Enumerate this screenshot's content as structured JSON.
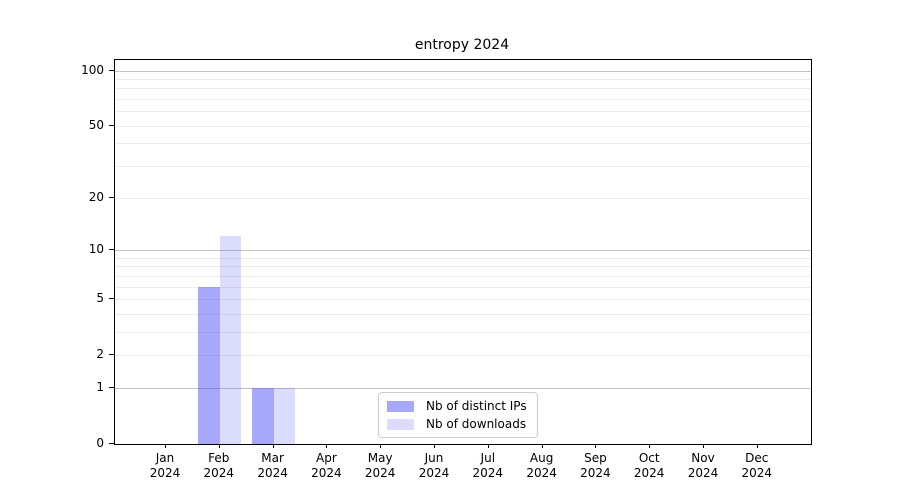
{
  "title": "entropy 2024",
  "chart_data": {
    "type": "bar",
    "title": "entropy 2024",
    "x_categories": [
      "Jan",
      "Feb",
      "Mar",
      "Apr",
      "May",
      "Jun",
      "Jul",
      "Aug",
      "Sep",
      "Oct",
      "Nov",
      "Dec"
    ],
    "x_year": "2024",
    "series": [
      {
        "name": "Nb of distinct IPs",
        "color": "rgba(81,81,245,0.5)",
        "values": [
          0,
          6,
          1,
          0,
          0,
          0,
          0,
          0,
          0,
          0,
          0,
          0
        ]
      },
      {
        "name": "Nb of downloads",
        "color": "rgba(81,81,245,0.2)",
        "values": [
          0,
          12,
          1,
          0,
          0,
          0,
          0,
          0,
          0,
          0,
          0,
          0
        ]
      }
    ],
    "yscale": "log1p",
    "ylim": [
      0,
      114
    ],
    "yticks": [
      0,
      1,
      2,
      5,
      10,
      20,
      50,
      100
    ],
    "major_gridlines": [
      1,
      10,
      100
    ],
    "minor_gridlines": [
      2,
      3,
      4,
      5,
      6,
      7,
      8,
      9,
      20,
      30,
      40,
      50,
      60,
      70,
      80,
      90
    ],
    "grid": true,
    "legend_position": "lower-center"
  },
  "colors": {
    "bar_distinct_ips": "rgba(81,81,245,0.5)",
    "bar_downloads": "rgba(81,81,245,0.2)",
    "major_grid": "#c3c3c3",
    "minor_grid": "#ededed",
    "axis": "#000000",
    "legend_border": "#cccccc",
    "background": "#ffffff"
  }
}
